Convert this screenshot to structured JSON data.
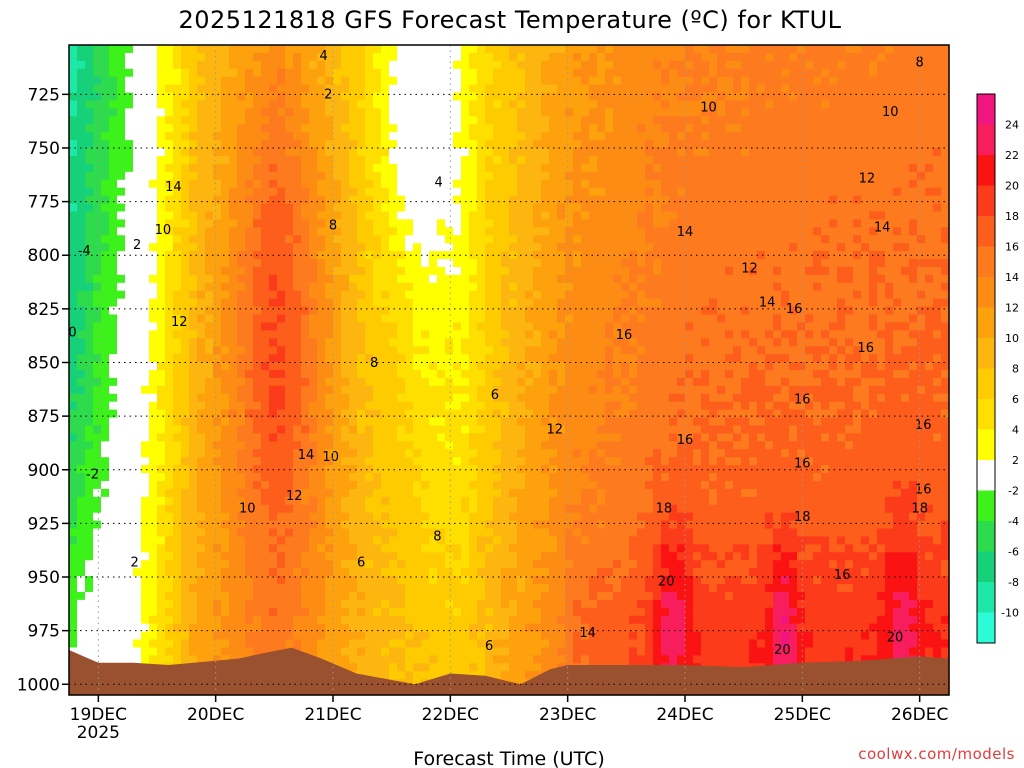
{
  "chart_data": {
    "type": "heatmap",
    "title": "2025121818 GFS Forecast Temperature (ºC) for KTUL",
    "xlabel": "Forecast Time (UTC)",
    "ylabel": "",
    "x_ticks": [
      {
        "label": "19DEC",
        "sub": "2025",
        "day": 19
      },
      {
        "label": "20DEC",
        "sub": "",
        "day": 20
      },
      {
        "label": "21DEC",
        "sub": "",
        "day": 21
      },
      {
        "label": "22DEC",
        "sub": "",
        "day": 22
      },
      {
        "label": "23DEC",
        "sub": "",
        "day": 23
      },
      {
        "label": "24DEC",
        "sub": "",
        "day": 24
      },
      {
        "label": "25DEC",
        "sub": "",
        "day": 25
      },
      {
        "label": "26DEC",
        "sub": "",
        "day": 26
      }
    ],
    "xlim": [
      18.75,
      26.25
    ],
    "y_ticks": [
      725,
      750,
      775,
      800,
      825,
      850,
      875,
      900,
      925,
      950,
      975,
      1000
    ],
    "ylim": [
      1005,
      702
    ],
    "y_unit": "hPa",
    "colorbar": {
      "labels": [
        "24",
        "22",
        "20",
        "18",
        "16",
        "14",
        "12",
        "10",
        "8",
        "6",
        "4",
        "2",
        "-2",
        "-4",
        "-6",
        "-8",
        "-10"
      ],
      "colors": [
        "#f0157f",
        "#f81e5e",
        "#fb1212",
        "#fc3b1a",
        "#fd5e1b",
        "#fd7a1e",
        "#fd8c14",
        "#fda10d",
        "#fdb60f",
        "#fecb00",
        "#ffdf00",
        "#ffff00",
        "#ffffff",
        "#3cf21a",
        "#2edb4c",
        "#17d17a",
        "#1ee8a8",
        "#2cfbd8"
      ]
    },
    "terrain_color": "#9a5130",
    "contour_labels": [
      {
        "t": "4",
        "day": 20.92,
        "p": 709
      },
      {
        "t": "2",
        "day": 20.96,
        "p": 727
      },
      {
        "t": "14",
        "day": 19.64,
        "p": 770
      },
      {
        "t": "10",
        "day": 19.55,
        "p": 790
      },
      {
        "t": "8",
        "day": 21.0,
        "p": 788
      },
      {
        "t": "4",
        "day": 21.9,
        "p": 768
      },
      {
        "t": "-4",
        "day": 18.88,
        "p": 800
      },
      {
        "t": "2",
        "day": 19.33,
        "p": 797
      },
      {
        "t": "0",
        "day": 18.78,
        "p": 838
      },
      {
        "t": "12",
        "day": 19.69,
        "p": 833
      },
      {
        "t": "8",
        "day": 21.35,
        "p": 852
      },
      {
        "t": "6",
        "day": 22.38,
        "p": 867
      },
      {
        "t": "12",
        "day": 22.89,
        "p": 883
      },
      {
        "t": "14",
        "day": 20.77,
        "p": 895
      },
      {
        "t": "10",
        "day": 20.98,
        "p": 896
      },
      {
        "t": "-2",
        "day": 18.95,
        "p": 904
      },
      {
        "t": "12",
        "day": 20.67,
        "p": 914
      },
      {
        "t": "10",
        "day": 20.27,
        "p": 920
      },
      {
        "t": "2",
        "day": 19.31,
        "p": 945
      },
      {
        "t": "8",
        "day": 21.89,
        "p": 933
      },
      {
        "t": "6",
        "day": 21.24,
        "p": 945
      },
      {
        "t": "6",
        "day": 22.33,
        "p": 984
      },
      {
        "t": "14",
        "day": 23.17,
        "p": 978
      },
      {
        "t": "14",
        "day": 24.0,
        "p": 791
      },
      {
        "t": "12",
        "day": 24.55,
        "p": 808
      },
      {
        "t": "10",
        "day": 24.2,
        "p": 733
      },
      {
        "t": "14",
        "day": 24.7,
        "p": 824
      },
      {
        "t": "16",
        "day": 24.93,
        "p": 827
      },
      {
        "t": "16",
        "day": 23.48,
        "p": 839
      },
      {
        "t": "16",
        "day": 25.0,
        "p": 869
      },
      {
        "t": "16",
        "day": 25.54,
        "p": 845
      },
      {
        "t": "16",
        "day": 26.03,
        "p": 881
      },
      {
        "t": "16",
        "day": 24.0,
        "p": 888
      },
      {
        "t": "16",
        "day": 25.0,
        "p": 899
      },
      {
        "t": "16",
        "day": 26.03,
        "p": 911
      },
      {
        "t": "18",
        "day": 23.82,
        "p": 920
      },
      {
        "t": "18",
        "day": 25.0,
        "p": 924
      },
      {
        "t": "18",
        "day": 26.0,
        "p": 920
      },
      {
        "t": "16",
        "day": 25.34,
        "p": 951
      },
      {
        "t": "20",
        "day": 23.84,
        "p": 954
      },
      {
        "t": "20",
        "day": 24.83,
        "p": 986
      },
      {
        "t": "20",
        "day": 25.79,
        "p": 980
      },
      {
        "t": "12",
        "day": 25.55,
        "p": 766
      },
      {
        "t": "14",
        "day": 25.68,
        "p": 789
      },
      {
        "t": "10",
        "day": 25.75,
        "p": 735
      },
      {
        "t": "8",
        "day": 26.0,
        "p": 712
      }
    ]
  },
  "watermark": "coolwx.com/models"
}
